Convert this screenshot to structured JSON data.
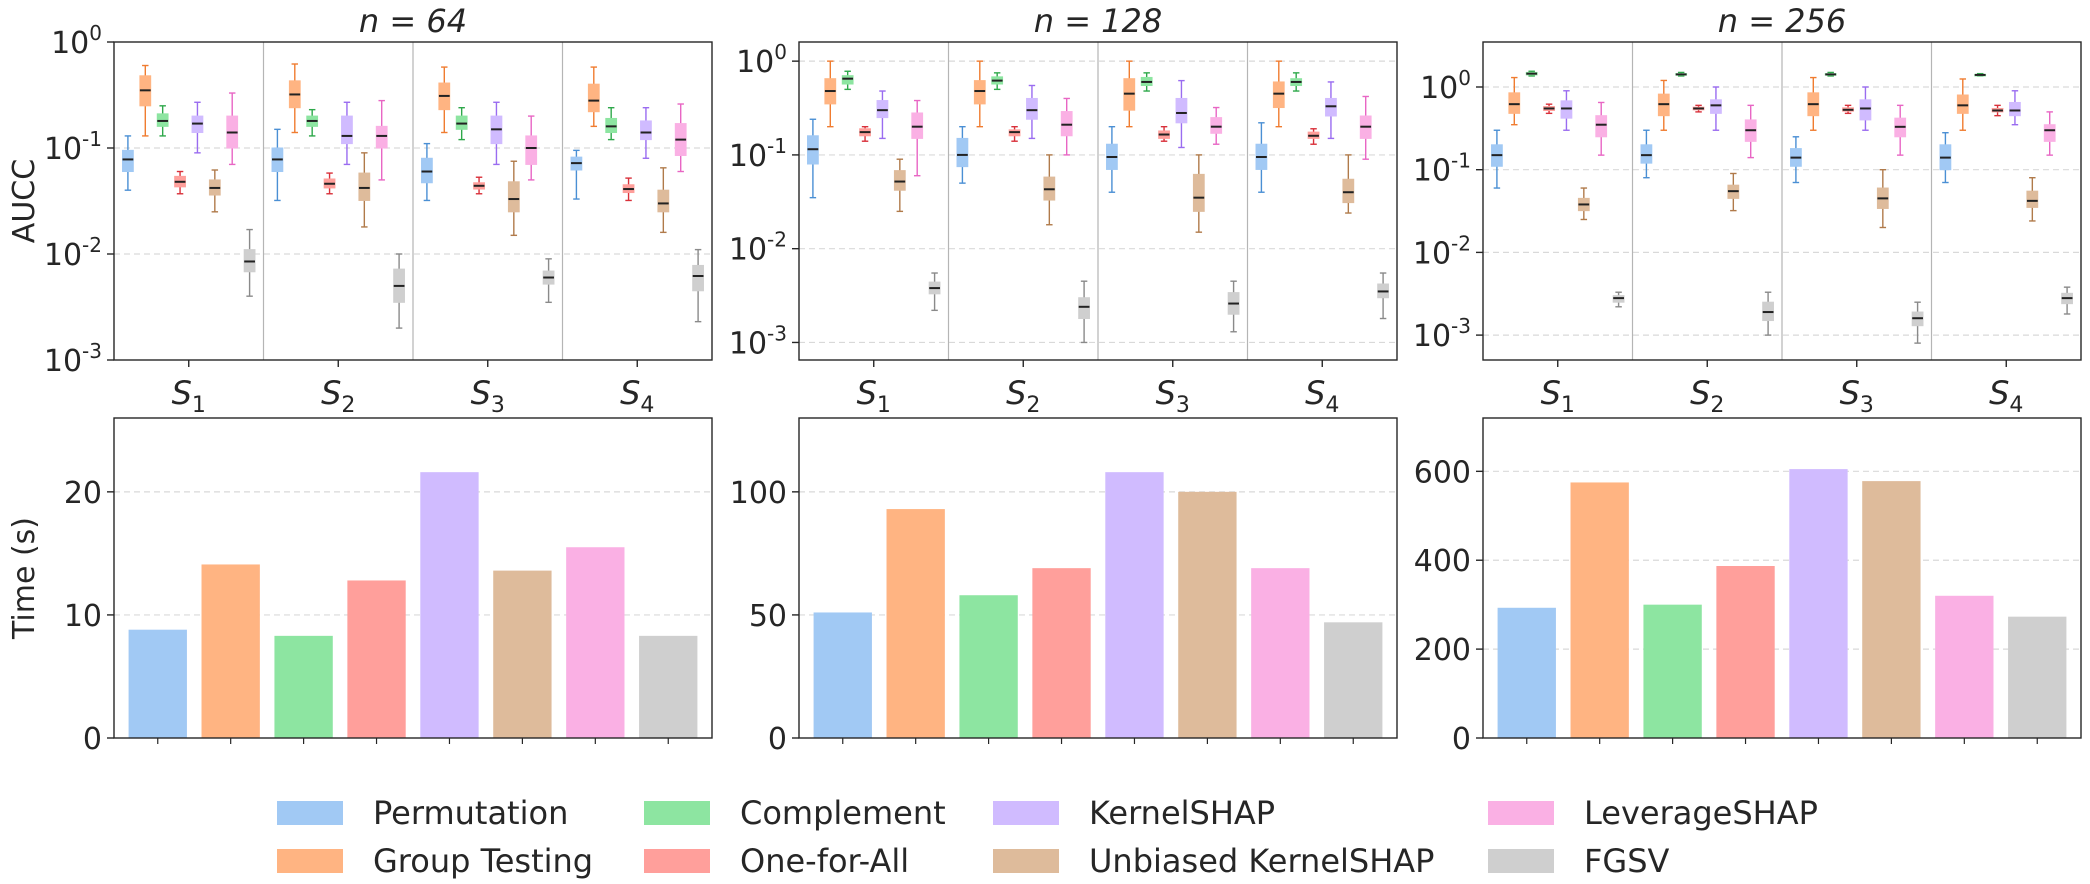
{
  "chart_data": {
    "type": "boxplot+bar",
    "methods": [
      {
        "name": "Permutation",
        "color": "#a1c9f4"
      },
      {
        "name": "Group Testing",
        "color": "#ffb482"
      },
      {
        "name": "Complement",
        "color": "#8de5a1"
      },
      {
        "name": "One-for-All",
        "color": "#ff9f9b"
      },
      {
        "name": "KernelSHAP",
        "color": "#d0bbff"
      },
      {
        "name": "Unbiased KernelSHAP",
        "color": "#debb9b"
      },
      {
        "name": "LeverageSHAP",
        "color": "#fab0e4"
      },
      {
        "name": "FGSV",
        "color": "#cfcfcf"
      }
    ],
    "line_colors": [
      "#4a8fd4",
      "#f07c30",
      "#2ea84a",
      "#d9303a",
      "#9a6cf0",
      "#b07a4a",
      "#e866c4",
      "#8a8a8a"
    ],
    "groups": [
      "S_1",
      "S_2",
      "S_3",
      "S_4"
    ],
    "panels": [
      {
        "title": "n = 64",
        "ylabel": "AUCC",
        "yscale": "log",
        "ylim": [
          0.001,
          1
        ],
        "yticks": [
          {
            "exp": "0",
            "value": 1
          },
          {
            "exp": "-1",
            "value": 0.1
          },
          {
            "exp": "-2",
            "value": 0.01
          },
          {
            "exp": "-3",
            "value": 0.001
          }
        ],
        "boxes": [
          [
            [
              0.04,
              0.06,
              0.078,
              0.095,
              0.13
            ],
            [
              0.13,
              0.25,
              0.35,
              0.48,
              0.6
            ],
            [
              0.13,
              0.16,
              0.18,
              0.21,
              0.25
            ],
            [
              0.037,
              0.043,
              0.048,
              0.054,
              0.06
            ],
            [
              0.09,
              0.14,
              0.17,
              0.2,
              0.27
            ],
            [
              0.025,
              0.036,
              0.042,
              0.05,
              0.062
            ],
            [
              0.07,
              0.1,
              0.14,
              0.2,
              0.33
            ],
            [
              0.004,
              0.0068,
              0.0085,
              0.011,
              0.017
            ]
          ],
          [
            [
              0.032,
              0.06,
              0.078,
              0.1,
              0.15
            ],
            [
              0.14,
              0.24,
              0.32,
              0.43,
              0.62
            ],
            [
              0.13,
              0.16,
              0.18,
              0.2,
              0.23
            ],
            [
              0.037,
              0.042,
              0.046,
              0.051,
              0.058
            ],
            [
              0.07,
              0.11,
              0.13,
              0.2,
              0.27
            ],
            [
              0.018,
              0.032,
              0.042,
              0.058,
              0.09
            ],
            [
              0.05,
              0.1,
              0.13,
              0.16,
              0.28
            ],
            [
              0.002,
              0.0035,
              0.005,
              0.0072,
              0.01
            ]
          ],
          [
            [
              0.032,
              0.047,
              0.06,
              0.08,
              0.11
            ],
            [
              0.14,
              0.23,
              0.31,
              0.41,
              0.58
            ],
            [
              0.12,
              0.15,
              0.17,
              0.2,
              0.24
            ],
            [
              0.037,
              0.041,
              0.044,
              0.047,
              0.053
            ],
            [
              0.07,
              0.11,
              0.15,
              0.2,
              0.27
            ],
            [
              0.015,
              0.025,
              0.033,
              0.048,
              0.075
            ],
            [
              0.05,
              0.07,
              0.1,
              0.13,
              0.2
            ],
            [
              0.0035,
              0.0052,
              0.006,
              0.0069,
              0.009
            ]
          ],
          [
            [
              0.033,
              0.062,
              0.072,
              0.082,
              0.095
            ],
            [
              0.16,
              0.22,
              0.28,
              0.4,
              0.58
            ],
            [
              0.12,
              0.14,
              0.16,
              0.19,
              0.24
            ],
            [
              0.032,
              0.038,
              0.041,
              0.045,
              0.052
            ],
            [
              0.08,
              0.12,
              0.14,
              0.18,
              0.24
            ],
            [
              0.016,
              0.025,
              0.03,
              0.04,
              0.065
            ],
            [
              0.06,
              0.085,
              0.12,
              0.17,
              0.26
            ],
            [
              0.0023,
              0.0045,
              0.0062,
              0.0078,
              0.011
            ]
          ]
        ],
        "time_ylim": [
          0,
          26
        ],
        "time_yticks": [
          0,
          10,
          20
        ],
        "time_ylabel": "Time (s)",
        "times": [
          8.8,
          14.1,
          8.3,
          12.8,
          21.6,
          13.6,
          15.5,
          8.3
        ]
      },
      {
        "title": "n = 128",
        "ylabel": "",
        "yscale": "log",
        "ylim": [
          0.00065,
          1.6
        ],
        "yticks": [
          {
            "exp": "0",
            "value": 1
          },
          {
            "exp": "-1",
            "value": 0.1
          },
          {
            "exp": "-2",
            "value": 0.01
          },
          {
            "exp": "-3",
            "value": 0.001
          }
        ],
        "boxes": [
          [
            [
              0.035,
              0.08,
              0.115,
              0.16,
              0.24
            ],
            [
              0.2,
              0.35,
              0.48,
              0.65,
              1.0
            ],
            [
              0.5,
              0.57,
              0.65,
              0.7,
              0.78
            ],
            [
              0.14,
              0.16,
              0.175,
              0.19,
              0.2
            ],
            [
              0.15,
              0.25,
              0.3,
              0.38,
              0.48
            ],
            [
              0.025,
              0.042,
              0.052,
              0.068,
              0.09
            ],
            [
              0.06,
              0.15,
              0.2,
              0.28,
              0.38
            ],
            [
              0.0022,
              0.0033,
              0.0038,
              0.0044,
              0.0055
            ]
          ],
          [
            [
              0.05,
              0.075,
              0.1,
              0.15,
              0.2
            ],
            [
              0.2,
              0.35,
              0.48,
              0.62,
              1.0
            ],
            [
              0.5,
              0.57,
              0.62,
              0.68,
              0.75
            ],
            [
              0.14,
              0.16,
              0.175,
              0.185,
              0.2
            ],
            [
              0.15,
              0.24,
              0.3,
              0.4,
              0.55
            ],
            [
              0.018,
              0.033,
              0.043,
              0.058,
              0.1
            ],
            [
              0.1,
              0.16,
              0.21,
              0.29,
              0.4
            ],
            [
              0.001,
              0.0018,
              0.0024,
              0.003,
              0.0045
            ]
          ],
          [
            [
              0.04,
              0.07,
              0.095,
              0.13,
              0.2
            ],
            [
              0.2,
              0.3,
              0.45,
              0.65,
              1.0
            ],
            [
              0.48,
              0.55,
              0.6,
              0.67,
              0.75
            ],
            [
              0.14,
              0.15,
              0.165,
              0.18,
              0.2
            ],
            [
              0.12,
              0.22,
              0.28,
              0.4,
              0.62
            ],
            [
              0.015,
              0.025,
              0.035,
              0.062,
              0.1
            ],
            [
              0.13,
              0.17,
              0.2,
              0.25,
              0.32
            ],
            [
              0.0013,
              0.002,
              0.0026,
              0.0034,
              0.0045
            ]
          ],
          [
            [
              0.04,
              0.07,
              0.095,
              0.13,
              0.22
            ],
            [
              0.2,
              0.32,
              0.45,
              0.6,
              1.0
            ],
            [
              0.48,
              0.55,
              0.6,
              0.65,
              0.75
            ],
            [
              0.13,
              0.15,
              0.16,
              0.175,
              0.19
            ],
            [
              0.15,
              0.26,
              0.33,
              0.4,
              0.6
            ],
            [
              0.024,
              0.031,
              0.04,
              0.055,
              0.1
            ],
            [
              0.09,
              0.15,
              0.2,
              0.26,
              0.42
            ],
            [
              0.0018,
              0.003,
              0.0035,
              0.0042,
              0.0055
            ]
          ]
        ],
        "time_ylim": [
          0,
          130
        ],
        "time_yticks": [
          0,
          50,
          100
        ],
        "time_ylabel": "",
        "times": [
          51,
          93,
          58,
          69,
          108,
          100,
          69,
          47
        ]
      },
      {
        "title": "n = 256",
        "ylabel": "",
        "yscale": "log",
        "ylim": [
          0.0005,
          3.5
        ],
        "yticks": [
          {
            "exp": "0",
            "value": 1
          },
          {
            "exp": "-1",
            "value": 0.1
          },
          {
            "exp": "-2",
            "value": 0.01
          },
          {
            "exp": "-3",
            "value": 0.001
          }
        ],
        "boxes": [
          [
            [
              0.06,
              0.11,
              0.15,
              0.2,
              0.3
            ],
            [
              0.35,
              0.48,
              0.62,
              0.85,
              1.3
            ],
            [
              1.36,
              1.4,
              1.45,
              1.5,
              1.55
            ],
            [
              0.48,
              0.52,
              0.55,
              0.58,
              0.62
            ],
            [
              0.3,
              0.42,
              0.55,
              0.68,
              0.9
            ],
            [
              0.025,
              0.032,
              0.038,
              0.045,
              0.06
            ],
            [
              0.15,
              0.25,
              0.35,
              0.45,
              0.65
            ],
            [
              0.0022,
              0.0025,
              0.0028,
              0.003,
              0.0033
            ]
          ],
          [
            [
              0.08,
              0.12,
              0.15,
              0.2,
              0.3
            ],
            [
              0.3,
              0.45,
              0.62,
              0.82,
              1.2
            ],
            [
              1.36,
              1.4,
              1.42,
              1.45,
              1.5
            ],
            [
              0.5,
              0.53,
              0.55,
              0.57,
              0.6
            ],
            [
              0.3,
              0.48,
              0.6,
              0.7,
              1.0
            ],
            [
              0.032,
              0.045,
              0.055,
              0.065,
              0.09
            ],
            [
              0.14,
              0.22,
              0.3,
              0.4,
              0.6
            ],
            [
              0.001,
              0.0015,
              0.0019,
              0.0025,
              0.0033
            ]
          ],
          [
            [
              0.07,
              0.11,
              0.14,
              0.18,
              0.25
            ],
            [
              0.3,
              0.45,
              0.62,
              0.85,
              1.3
            ],
            [
              1.36,
              1.4,
              1.42,
              1.45,
              1.5
            ],
            [
              0.48,
              0.51,
              0.53,
              0.56,
              0.6
            ],
            [
              0.3,
              0.4,
              0.55,
              0.7,
              1.0
            ],
            [
              0.02,
              0.034,
              0.045,
              0.06,
              0.1
            ],
            [
              0.15,
              0.25,
              0.33,
              0.42,
              0.6
            ],
            [
              0.0008,
              0.0013,
              0.0016,
              0.0019,
              0.0025
            ]
          ],
          [
            [
              0.07,
              0.1,
              0.14,
              0.2,
              0.28
            ],
            [
              0.3,
              0.48,
              0.6,
              0.8,
              1.25
            ],
            [
              1.36,
              1.38,
              1.4,
              1.42,
              1.45
            ],
            [
              0.45,
              0.5,
              0.52,
              0.55,
              0.6
            ],
            [
              0.35,
              0.45,
              0.52,
              0.65,
              0.9
            ],
            [
              0.024,
              0.035,
              0.042,
              0.055,
              0.08
            ],
            [
              0.15,
              0.22,
              0.3,
              0.35,
              0.5
            ],
            [
              0.0018,
              0.0024,
              0.0028,
              0.0032,
              0.0038
            ]
          ]
        ],
        "time_ylim": [
          0,
          720
        ],
        "time_yticks": [
          0,
          200,
          400,
          600
        ],
        "time_ylabel": "",
        "times": [
          293,
          575,
          300,
          387,
          605,
          578,
          320,
          273
        ]
      }
    ]
  }
}
